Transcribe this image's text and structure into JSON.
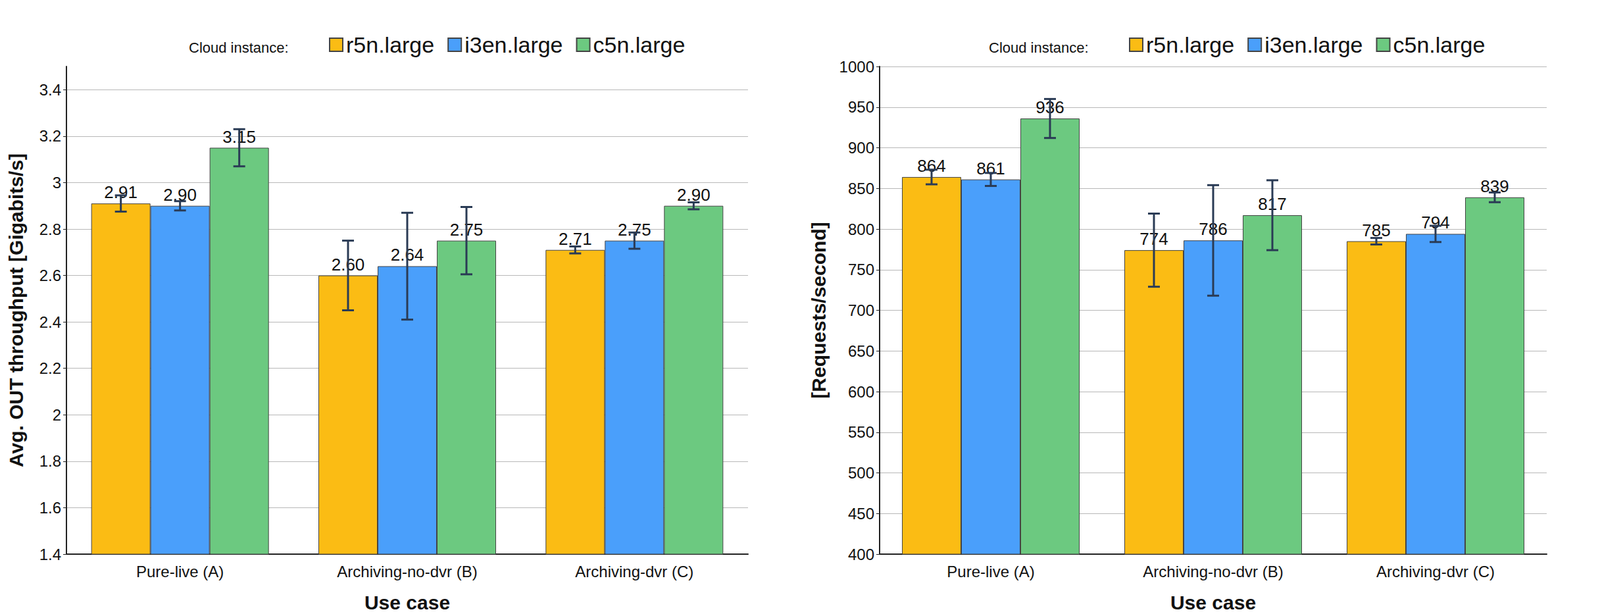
{
  "chart_data": [
    {
      "type": "bar",
      "x_label": "Use case",
      "y_label": "Avg. OUT throughput [Gigabits/s]",
      "legend_title": "Cloud instance:",
      "legend": "top-right",
      "grid": true,
      "data_labels": true,
      "categories": [
        "Pure-live (A)",
        "Archiving-no-dvr (B)",
        "Archiving-dvr (C)"
      ],
      "ylim": [
        1.4,
        3.5
      ],
      "yticks": [
        1.4,
        1.6,
        1.8,
        2,
        2.2,
        2.4,
        2.6,
        2.8,
        3,
        3.2,
        3.4
      ],
      "series": [
        {
          "name": "r5n.large",
          "color": "#fbbc14",
          "values": [
            2.91,
            2.6,
            2.71
          ],
          "value_labels": [
            "2.91",
            "2.60",
            "2.71"
          ],
          "errors": [
            0.035,
            0.15,
            0.015
          ]
        },
        {
          "name": "i3en.large",
          "color": "#4a9ffb",
          "values": [
            2.9,
            2.64,
            2.75
          ],
          "value_labels": [
            "2.90",
            "2.64",
            "2.75"
          ],
          "errors": [
            0.02,
            0.23,
            0.035
          ]
        },
        {
          "name": "c5n.large",
          "color": "#6cc980",
          "values": [
            3.15,
            2.75,
            2.9
          ],
          "value_labels": [
            "3.15",
            "2.75",
            "2.90"
          ],
          "errors": [
            0.08,
            0.145,
            0.015
          ]
        }
      ]
    },
    {
      "type": "bar",
      "x_label": "Use case",
      "y_label": "[Requests/second]",
      "legend_title": "Cloud instance:",
      "legend": "top-right",
      "grid": true,
      "data_labels": true,
      "categories": [
        "Pure-live (A)",
        "Archiving-no-dvr (B)",
        "Archiving-dvr (C)"
      ],
      "ylim": [
        400,
        1000
      ],
      "yticks": [
        400,
        450,
        500,
        550,
        600,
        650,
        700,
        750,
        800,
        850,
        900,
        950,
        1000
      ],
      "series": [
        {
          "name": "r5n.large",
          "color": "#fbbc14",
          "values": [
            864,
            774,
            785
          ],
          "errors": [
            9,
            45,
            4
          ]
        },
        {
          "name": "i3en.large",
          "color": "#4a9ffb",
          "values": [
            861,
            786,
            794
          ],
          "errors": [
            8,
            68,
            10
          ]
        },
        {
          "name": "c5n.large",
          "color": "#6cc980",
          "values": [
            936,
            817,
            839
          ],
          "errors": [
            24,
            43,
            6
          ]
        }
      ]
    }
  ]
}
